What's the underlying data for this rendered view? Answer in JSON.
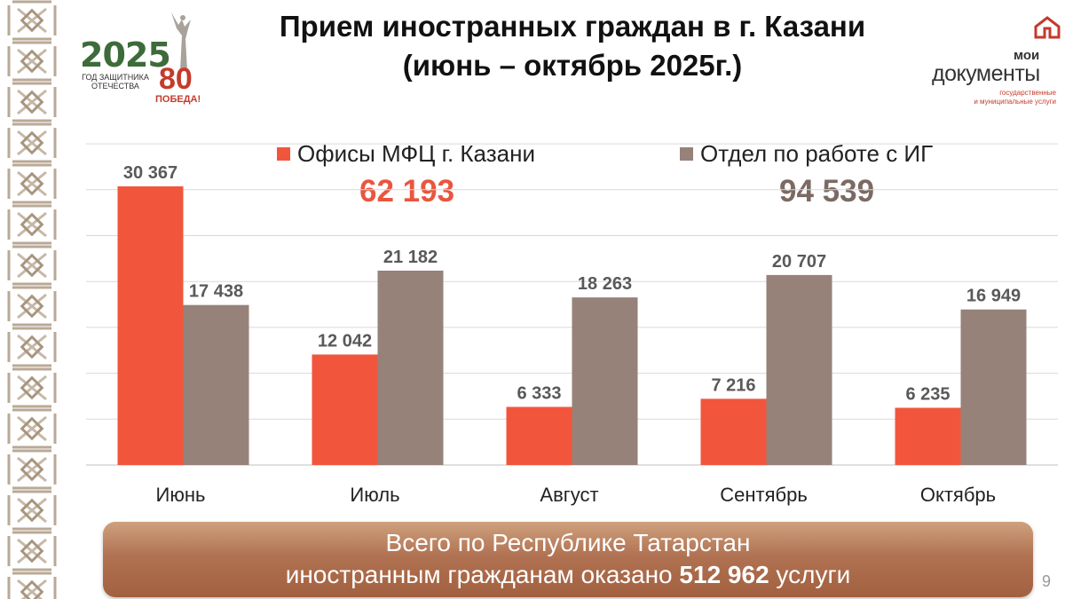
{
  "header": {
    "title_line1": "Прием иностранных граждан в г. Казани",
    "title_line2": "(июнь – октябрь 2025г.)"
  },
  "logos": {
    "year": "2025",
    "year_sub1": "ГОД ЗАЩИТНИКА",
    "year_sub2": "ОТЕЧЕСТВА",
    "victory_num": "80",
    "victory_text": "ПОБЕДА!",
    "md_line1": "мои",
    "md_line2": "документы",
    "md_line3": "государственные",
    "md_line4": "и муниципальные услуги"
  },
  "colors": {
    "mfc": "#f1563d",
    "ig": "#968279",
    "mfc_total": "#e9563f",
    "ig_total": "#7b6a63"
  },
  "chart_data": {
    "type": "bar",
    "categories": [
      "Июнь",
      "Июль",
      "Август",
      "Сентябрь",
      "Октябрь"
    ],
    "series": [
      {
        "name": "Офисы МФЦ г. Казани",
        "values": [
          30367,
          12042,
          6333,
          7216,
          6235
        ],
        "labels": [
          "30 367",
          "12 042",
          "6 333",
          "7 216",
          "6 235"
        ],
        "total": "62 193"
      },
      {
        "name": "Отдел по работе с ИГ",
        "values": [
          17438,
          21182,
          18263,
          20707,
          16949
        ],
        "labels": [
          "17 438",
          "21 182",
          "18 263",
          "20 707",
          "16 949"
        ],
        "total": "94 539"
      }
    ],
    "ylim": [
      0,
      35000
    ],
    "grid": true,
    "legend": "top"
  },
  "footer": {
    "line1": "Всего по Республике Татарстан",
    "line2_pre": "иностранным гражданам оказано ",
    "line2_bold": "512 962",
    "line2_post": " услуги",
    "page_number": "9"
  }
}
